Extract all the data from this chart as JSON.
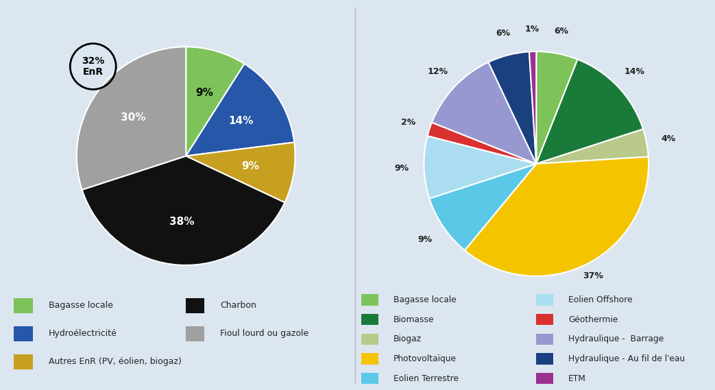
{
  "background_color": "#dce6f0",
  "pie1": {
    "labels": [
      "Bagasse locale",
      "Hydroélectricité",
      "Autres EnR (PV, éolien, biogaz)",
      "Charbon",
      "Fioul lourd ou gazole"
    ],
    "values": [
      9,
      14,
      9,
      38,
      30
    ],
    "colors": [
      "#7dc35a",
      "#2657a8",
      "#c8a020",
      "#111111",
      "#a0a0a0"
    ],
    "label_colors": [
      "#000000",
      "#ffffff",
      "#ffffff",
      "#ffffff",
      "#ffffff"
    ],
    "startangle": 90,
    "enr_text": "32%\nEnR"
  },
  "pie2": {
    "labels": [
      "Bagasse locale",
      "Biomasse",
      "Biogaz",
      "Photovoltaïque",
      "Eolien Terrestre",
      "Eolien Offshore",
      "Géothermie",
      "Hydraulique -  Barrage",
      "Hydraulique - Au fil de l'eau",
      "ETM"
    ],
    "values": [
      6,
      14,
      4,
      37,
      9,
      9,
      2,
      12,
      6,
      1
    ],
    "colors": [
      "#7dc35a",
      "#1a7a3a",
      "#b8c98a",
      "#f5c400",
      "#5bc8e8",
      "#aaddf0",
      "#d93030",
      "#9898d0",
      "#1a4080",
      "#9b3090"
    ],
    "startangle": 90
  },
  "legend1": {
    "col1": [
      {
        "label": "Bagasse locale",
        "color": "#7dc35a"
      },
      {
        "label": "Hydroélectricité",
        "color": "#2657a8"
      },
      {
        "label": "Autres EnR (PV, éolien, biogaz)",
        "color": "#c8a020"
      }
    ],
    "col2": [
      {
        "label": "Charbon",
        "color": "#111111"
      },
      {
        "label": "Fioul lourd ou gazole",
        "color": "#a0a0a0"
      }
    ]
  },
  "legend2": {
    "col1": [
      {
        "label": "Bagasse locale",
        "color": "#7dc35a"
      },
      {
        "label": "Biomasse",
        "color": "#1a7a3a"
      },
      {
        "label": "Biogaz",
        "color": "#b8c98a"
      },
      {
        "label": "Photovoltaïque",
        "color": "#f5c400"
      },
      {
        "label": "Eolien Terrestre",
        "color": "#5bc8e8"
      }
    ],
    "col2": [
      {
        "label": "Eolien Offshore",
        "color": "#aaddf0"
      },
      {
        "label": "Géothermie",
        "color": "#d93030"
      },
      {
        "label": "Hydraulique -  Barrage",
        "color": "#9898d0"
      },
      {
        "label": "Hydraulique - Au fil de l'eau",
        "color": "#1a4080"
      },
      {
        "label": "ETM",
        "color": "#9b3090"
      }
    ]
  }
}
